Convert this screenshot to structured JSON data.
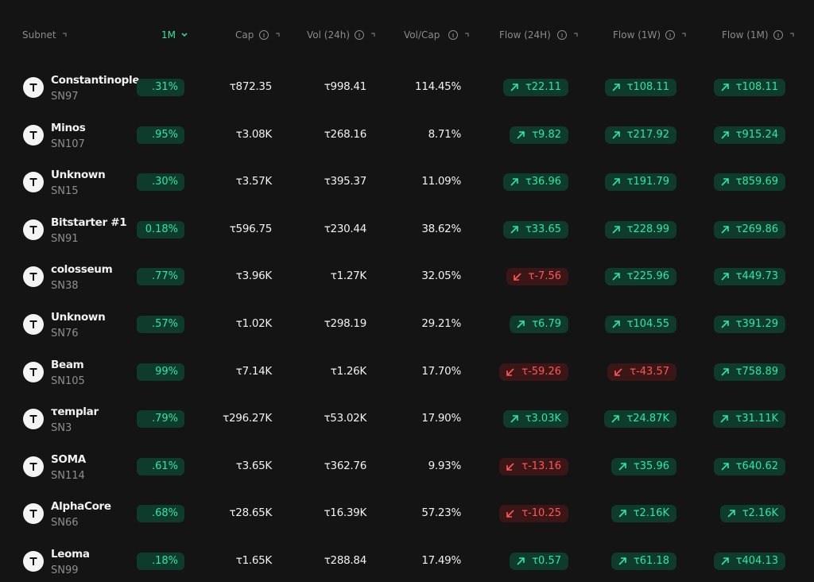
{
  "header": {
    "subnet": "Subnet",
    "m1": "1M",
    "cap": "Cap",
    "vol": "Vol (24h)",
    "volcap": "Vol/Cap",
    "flow24": "Flow (24H)",
    "flow1w": "Flow (1W)",
    "flow1m": "Flow (1M)"
  },
  "rows": [
    {
      "name": "Constantinople",
      "sn": "SN97",
      "m1": ".31%",
      "cap": "τ872.35",
      "vol": "τ998.41",
      "volcap": "114.45%",
      "flow24": {
        "text": "τ22.11",
        "dir": "up"
      },
      "flow1w": {
        "text": "τ108.11",
        "dir": "up"
      },
      "flow1m": {
        "text": "τ108.11",
        "dir": "up"
      }
    },
    {
      "name": "Minos",
      "sn": "SN107",
      "m1": ".95%",
      "cap": "τ3.08K",
      "vol": "τ268.16",
      "volcap": "8.71%",
      "flow24": {
        "text": "τ9.82",
        "dir": "up"
      },
      "flow1w": {
        "text": "τ217.92",
        "dir": "up"
      },
      "flow1m": {
        "text": "τ915.24",
        "dir": "up"
      }
    },
    {
      "name": "Unknown",
      "sn": "SN15",
      "m1": ".30%",
      "cap": "τ3.57K",
      "vol": "τ395.37",
      "volcap": "11.09%",
      "flow24": {
        "text": "τ36.96",
        "dir": "up"
      },
      "flow1w": {
        "text": "τ191.79",
        "dir": "up"
      },
      "flow1m": {
        "text": "τ859.69",
        "dir": "up"
      }
    },
    {
      "name": "Bitstarter #1",
      "sn": "SN91",
      "m1": "0.18%",
      "cap": "τ596.75",
      "vol": "τ230.44",
      "volcap": "38.62%",
      "flow24": {
        "text": "τ33.65",
        "dir": "up"
      },
      "flow1w": {
        "text": "τ228.99",
        "dir": "up"
      },
      "flow1m": {
        "text": "τ269.86",
        "dir": "up"
      }
    },
    {
      "name": "colosseum",
      "sn": "SN38",
      "m1": ".77%",
      "cap": "τ3.96K",
      "vol": "τ1.27K",
      "volcap": "32.05%",
      "flow24": {
        "text": "τ-7.56",
        "dir": "down"
      },
      "flow1w": {
        "text": "τ225.96",
        "dir": "up"
      },
      "flow1m": {
        "text": "τ449.73",
        "dir": "up"
      }
    },
    {
      "name": "Unknown",
      "sn": "SN76",
      "m1": ".57%",
      "cap": "τ1.02K",
      "vol": "τ298.19",
      "volcap": "29.21%",
      "flow24": {
        "text": "τ6.79",
        "dir": "up"
      },
      "flow1w": {
        "text": "τ104.55",
        "dir": "up"
      },
      "flow1m": {
        "text": "τ391.29",
        "dir": "up"
      }
    },
    {
      "name": "Beam",
      "sn": "SN105",
      "m1": "99%",
      "cap": "τ7.14K",
      "vol": "τ1.26K",
      "volcap": "17.70%",
      "flow24": {
        "text": "τ-59.26",
        "dir": "down"
      },
      "flow1w": {
        "text": "τ-43.57",
        "dir": "down"
      },
      "flow1m": {
        "text": "τ758.89",
        "dir": "up"
      }
    },
    {
      "name": "τemplar",
      "sn": "SN3",
      "m1": ".79%",
      "cap": "τ296.27K",
      "vol": "τ53.02K",
      "volcap": "17.90%",
      "flow24": {
        "text": "τ3.03K",
        "dir": "up"
      },
      "flow1w": {
        "text": "τ24.87K",
        "dir": "up"
      },
      "flow1m": {
        "text": "τ31.11K",
        "dir": "up"
      }
    },
    {
      "name": "SOMA",
      "sn": "SN114",
      "m1": ".61%",
      "cap": "τ3.65K",
      "vol": "τ362.76",
      "volcap": "9.93%",
      "flow24": {
        "text": "τ-13.16",
        "dir": "down"
      },
      "flow1w": {
        "text": "τ35.96",
        "dir": "up"
      },
      "flow1m": {
        "text": "τ640.62",
        "dir": "up"
      }
    },
    {
      "name": "AlphaCore",
      "sn": "SN66",
      "m1": ".68%",
      "cap": "τ28.65K",
      "vol": "τ16.39K",
      "volcap": "57.23%",
      "flow24": {
        "text": "τ-10.25",
        "dir": "down"
      },
      "flow1w": {
        "text": "τ2.16K",
        "dir": "up"
      },
      "flow1m": {
        "text": "τ2.16K",
        "dir": "up"
      }
    },
    {
      "name": "Leoma",
      "sn": "SN99",
      "m1": ".18%",
      "cap": "τ1.65K",
      "vol": "τ288.84",
      "volcap": "17.49%",
      "flow24": {
        "text": "τ0.57",
        "dir": "up"
      },
      "flow1w": {
        "text": "τ61.18",
        "dir": "up"
      },
      "flow1m": {
        "text": "τ404.13",
        "dir": "up"
      }
    }
  ]
}
